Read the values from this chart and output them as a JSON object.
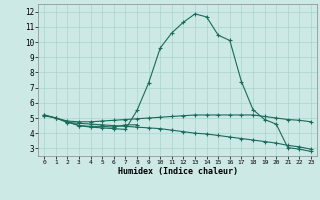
{
  "xlabel": "Humidex (Indice chaleur)",
  "bg_color": "#cce9e5",
  "grid_color": "#aad4cf",
  "line_color": "#1a6b5a",
  "xlim": [
    -0.5,
    23.5
  ],
  "ylim": [
    2.5,
    12.5
  ],
  "xticks": [
    0,
    1,
    2,
    3,
    4,
    5,
    6,
    7,
    8,
    9,
    10,
    11,
    12,
    13,
    14,
    15,
    16,
    17,
    18,
    19,
    20,
    21,
    22,
    23
  ],
  "yticks": [
    3,
    4,
    5,
    6,
    7,
    8,
    9,
    10,
    11,
    12
  ],
  "line1_x": [
    0,
    1,
    2,
    3,
    4,
    5,
    6,
    7,
    8,
    9,
    10,
    11,
    12,
    13,
    14,
    15,
    16,
    17,
    18,
    19,
    20,
    21,
    22,
    23
  ],
  "line1_y": [
    5.2,
    5.0,
    4.75,
    4.5,
    4.4,
    4.35,
    4.3,
    4.25,
    5.5,
    7.3,
    9.6,
    10.6,
    11.3,
    11.85,
    11.65,
    10.45,
    10.1,
    7.4,
    5.55,
    4.9,
    4.6,
    3.05,
    2.95,
    2.8
  ],
  "line2_x": [
    0,
    1,
    2,
    3,
    4,
    5,
    6,
    7,
    8,
    9,
    10,
    11,
    12,
    13,
    14,
    15,
    16,
    17,
    18,
    19,
    20,
    21,
    22,
    23
  ],
  "line2_y": [
    5.15,
    5.0,
    4.7,
    4.65,
    4.6,
    4.55,
    4.5,
    4.45,
    4.4,
    4.35,
    4.3,
    4.2,
    4.1,
    4.0,
    3.95,
    3.85,
    3.75,
    3.65,
    3.55,
    3.45,
    3.35,
    3.2,
    3.1,
    2.95
  ],
  "line3_x": [
    0,
    1,
    2,
    3,
    4,
    5,
    6,
    7,
    8,
    9,
    10,
    11,
    12,
    13,
    14,
    15,
    16,
    17,
    18,
    19,
    20,
    21,
    22,
    23
  ],
  "line3_y": [
    5.2,
    5.0,
    4.8,
    4.75,
    4.75,
    4.8,
    4.85,
    4.9,
    4.95,
    5.0,
    5.05,
    5.1,
    5.15,
    5.2,
    5.2,
    5.2,
    5.2,
    5.2,
    5.2,
    5.1,
    5.0,
    4.9,
    4.85,
    4.75
  ],
  "line4_x": [
    2,
    3,
    4,
    5,
    6,
    7,
    8
  ],
  "line4_y": [
    4.75,
    4.5,
    4.45,
    4.45,
    4.4,
    4.55,
    4.55
  ]
}
